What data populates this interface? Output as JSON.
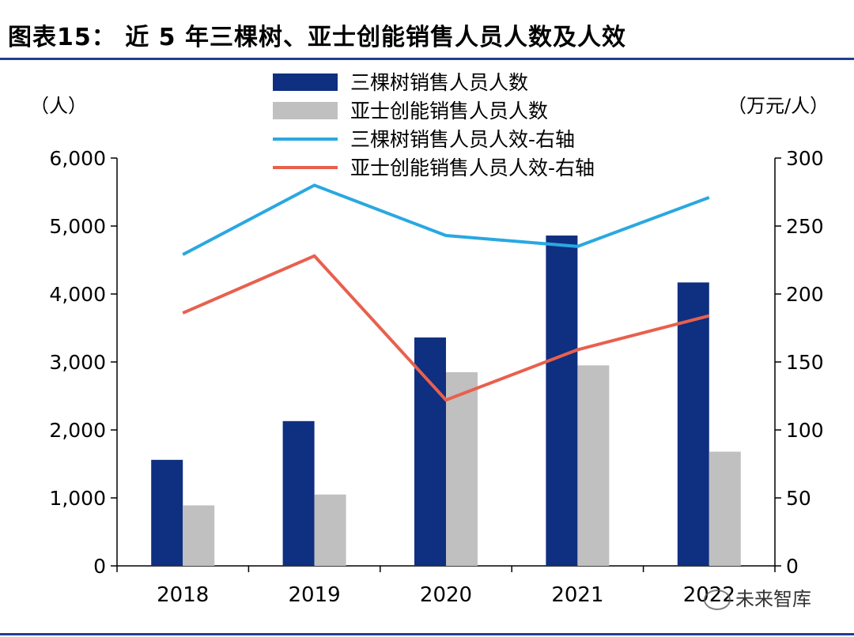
{
  "title": "图表15： 近 5 年三棵树、亚士创能销售人员人数及人效",
  "watermark": "未来智库",
  "chart_data": {
    "type": "bar",
    "categories": [
      "2018",
      "2019",
      "2020",
      "2021",
      "2022"
    ],
    "series": [
      {
        "name": "三棵树销售人员人数",
        "kind": "bar",
        "axis": "left",
        "color": "#0f2f80",
        "values": [
          1560,
          2130,
          3360,
          4860,
          4170
        ]
      },
      {
        "name": "亚士创能销售人员人数",
        "kind": "bar",
        "axis": "left",
        "color": "#c0c0c0",
        "values": [
          890,
          1050,
          2850,
          2950,
          1680
        ]
      },
      {
        "name": "三棵树销售人员人效-右轴",
        "kind": "line",
        "axis": "right",
        "color": "#2aa8e0",
        "values": [
          229,
          280,
          243,
          235,
          271
        ]
      },
      {
        "name": "亚士创能销售人员人效-右轴",
        "kind": "line",
        "axis": "right",
        "color": "#e8604e",
        "values": [
          186,
          228,
          122,
          159,
          184
        ]
      }
    ],
    "y_left": {
      "label": "（人）",
      "ylim": [
        0,
        6000
      ],
      "ticks": [
        "0",
        "1,000",
        "2,000",
        "3,000",
        "4,000",
        "5,000",
        "6,000"
      ]
    },
    "y_right": {
      "label": "（万元/人）",
      "ylim": [
        0,
        300
      ],
      "ticks": [
        "0",
        "50",
        "100",
        "150",
        "200",
        "250",
        "300"
      ]
    },
    "grid": false,
    "legend_position": "top-center"
  }
}
